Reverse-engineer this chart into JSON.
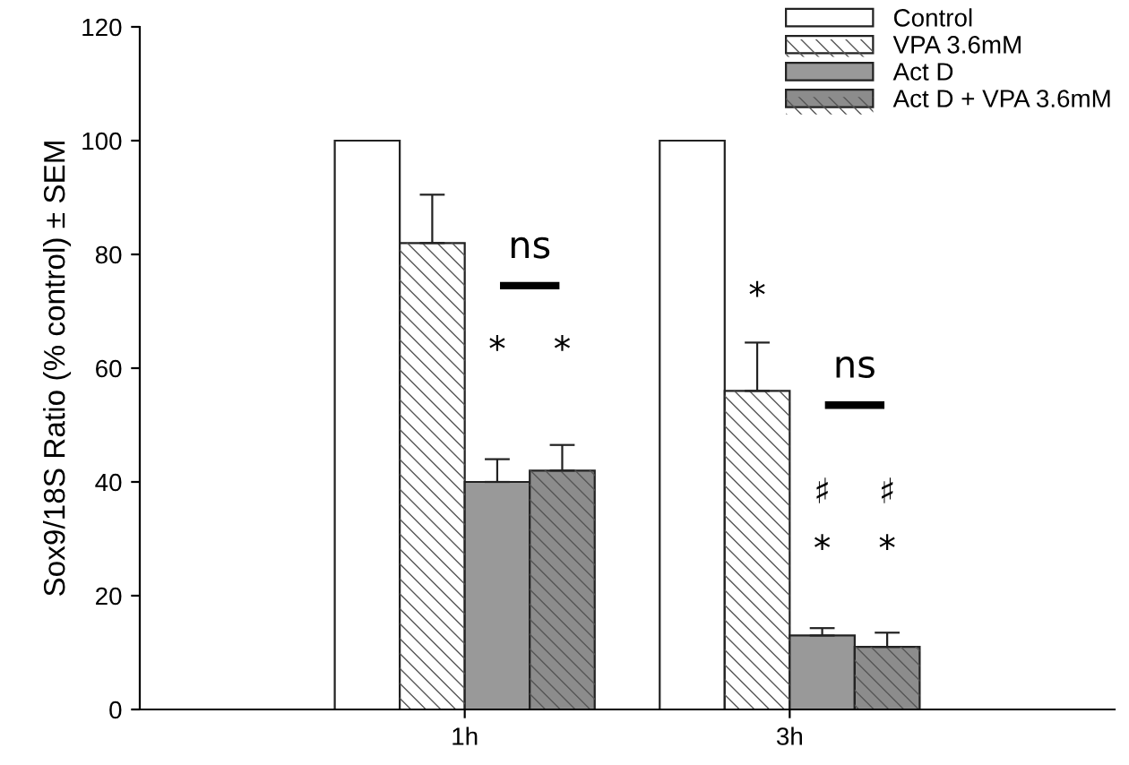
{
  "chart_data": {
    "type": "bar",
    "ylabel": "Sox9/18S Ratio (% control) ± SEM",
    "categories": [
      "1h",
      "3h"
    ],
    "series": [
      {
        "name": "Control",
        "color": "#ffffff",
        "values": [
          100,
          100
        ]
      },
      {
        "name": "VPA 3.6mM",
        "color": "#ffffff",
        "values": [
          82,
          56
        ],
        "errors": [
          [
            82,
            90.5
          ],
          [
            56,
            64.5
          ]
        ]
      },
      {
        "name": "Act D",
        "color": "#999999",
        "values": [
          40,
          13
        ],
        "errors": [
          [
            40,
            44
          ],
          [
            13,
            14.3
          ]
        ]
      },
      {
        "name": "Act D + VPA 3.6mM",
        "color": "#8c8c8c",
        "values": [
          42,
          11
        ],
        "errors": [
          [
            42,
            46.5
          ],
          [
            11,
            13.5
          ]
        ]
      }
    ],
    "ylim": [
      0,
      120
    ],
    "yticks": [
      0,
      20,
      40,
      60,
      80,
      100,
      120
    ],
    "grid": false,
    "legend": "top right",
    "annotations": [
      {
        "text": "ns",
        "x": "1h",
        "y": 78
      },
      {
        "text": "*",
        "x": "1h",
        "y": 60
      },
      {
        "text": "*",
        "x": "1h",
        "y": 60
      },
      "*",
      {
        "text": "ns",
        "x": "3h",
        "y": 57
      },
      {
        "text": "♯",
        "x": "3h",
        "y": 35
      },
      {
        "text": "♯",
        "x": "3h",
        "y": 35
      },
      {
        "text": "*",
        "x": "3h",
        "y": 25
      },
      {
        "text": "*",
        "x": "3h",
        "y": 25
      }
    ]
  }
}
